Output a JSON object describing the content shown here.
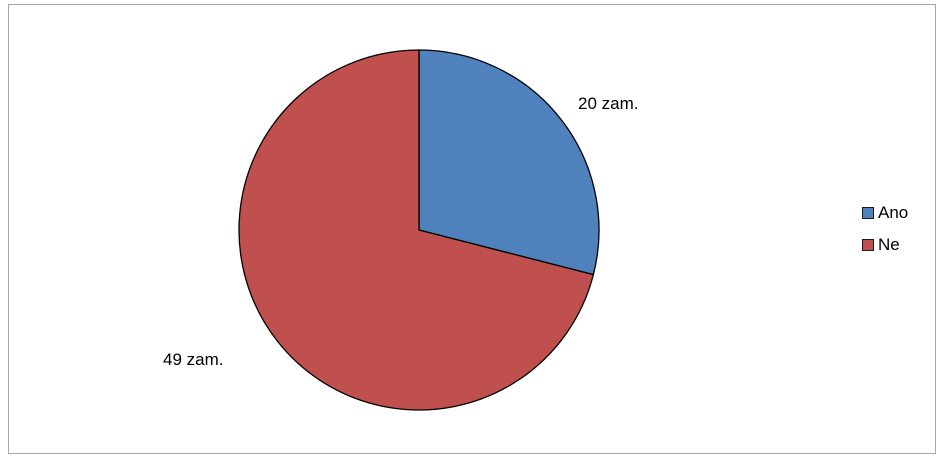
{
  "chart_data": {
    "type": "pie",
    "categories": [
      "Ano",
      "Ne"
    ],
    "values": [
      20,
      49
    ],
    "data_labels": [
      "20 zam.",
      "49 zam."
    ],
    "colors": [
      "#4f81bd",
      "#c0504d"
    ],
    "slice_border_color": "#000000",
    "legend": {
      "position": "right",
      "items": [
        {
          "label": "Ano",
          "color": "#4f81bd"
        },
        {
          "label": "Ne",
          "color": "#c0504d"
        }
      ]
    }
  }
}
